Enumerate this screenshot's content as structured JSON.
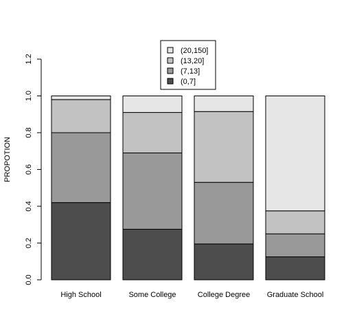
{
  "chart_data": {
    "type": "bar",
    "stacked": true,
    "title": "",
    "xlabel": "",
    "ylabel": "PROPOTION",
    "ylim": [
      0,
      1.2
    ],
    "yticks": [
      "0.0",
      "0.2",
      "0.4",
      "0.6",
      "0.8",
      "1.0",
      "1.2"
    ],
    "categories": [
      "High School",
      "Some College",
      "College Degree",
      "Graduate School"
    ],
    "series": [
      {
        "name": "(0,7]",
        "color": "#4d4d4d",
        "values": [
          0.42,
          0.275,
          0.195,
          0.125
        ]
      },
      {
        "name": "(7,13]",
        "color": "#999999",
        "values": [
          0.38,
          0.415,
          0.335,
          0.125
        ]
      },
      {
        "name": "(13,20]",
        "color": "#c2c2c2",
        "values": [
          0.18,
          0.22,
          0.385,
          0.125
        ]
      },
      {
        "name": "(20,150]",
        "color": "#e6e6e6",
        "values": [
          0.02,
          0.09,
          0.085,
          0.625
        ]
      }
    ],
    "legend": {
      "position": "top-center",
      "order": [
        "(20,150]",
        "(13,20]",
        "(7,13]",
        "(0,7]"
      ]
    },
    "grid": false
  }
}
